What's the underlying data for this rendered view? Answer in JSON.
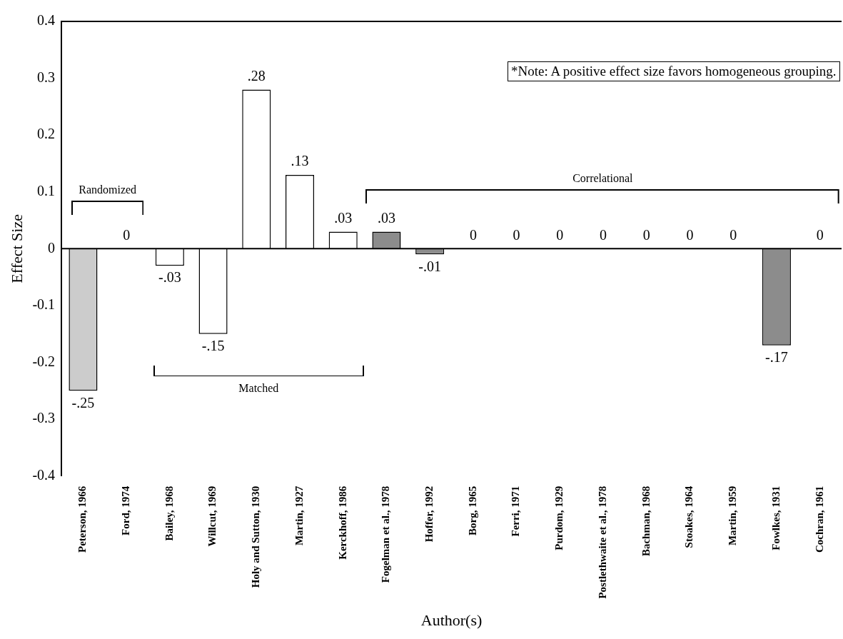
{
  "chart_data": {
    "type": "bar",
    "xlabel": "Author(s)",
    "ylabel": "Effect Size",
    "categories": [
      "Peterson, 1966",
      "Ford, 1974",
      "Bailey, 1968",
      "Willcut, 1969",
      "Holy and Sutton, 1930",
      "Martin, 1927",
      "Kerckhoff, 1986",
      "Fogelman et al., 1978",
      "Hoffer, 1992",
      "Borg, 1965",
      "Ferri, 1971",
      "Purdom, 1929",
      "Postlethwaite et al., 1978",
      "Bachman, 1968",
      "Stoakes, 1964",
      "Martin, 1959",
      "Fowlkes, 1931",
      "Cochran, 1961"
    ],
    "values": [
      -0.25,
      0,
      -0.03,
      -0.15,
      0.28,
      0.13,
      0.03,
      0.03,
      -0.01,
      0,
      0,
      0,
      0,
      0,
      0,
      0,
      -0.17,
      0
    ],
    "value_labels": [
      "-.25",
      "0",
      "-.03",
      "-.15",
      ".28",
      ".13",
      ".03",
      ".03",
      "-.01",
      "0",
      "0",
      "0",
      "0",
      "0",
      "0",
      "0",
      "-.17",
      "0"
    ],
    "colors": [
      "#cccccc",
      "#ffffff",
      "#ffffff",
      "#ffffff",
      "#ffffff",
      "#ffffff",
      "#ffffff",
      "#8c8c8c",
      "#8c8c8c",
      "#ffffff",
      "#ffffff",
      "#ffffff",
      "#ffffff",
      "#ffffff",
      "#ffffff",
      "#ffffff",
      "#8c8c8c",
      "#ffffff"
    ],
    "ylim": [
      -0.4,
      0.4
    ],
    "yticks": [
      -0.4,
      -0.3,
      -0.2,
      -0.1,
      0,
      0.1,
      0.2,
      0.3,
      0.4
    ],
    "ref_lines": [
      {
        "axis": "y",
        "value": 0,
        "color": "#000000"
      }
    ],
    "annotations": [
      "*Note: A positive effect size favors homogeneous grouping.",
      "Randomized",
      "Matched",
      "Correlational"
    ],
    "grid": false,
    "legend": false
  }
}
